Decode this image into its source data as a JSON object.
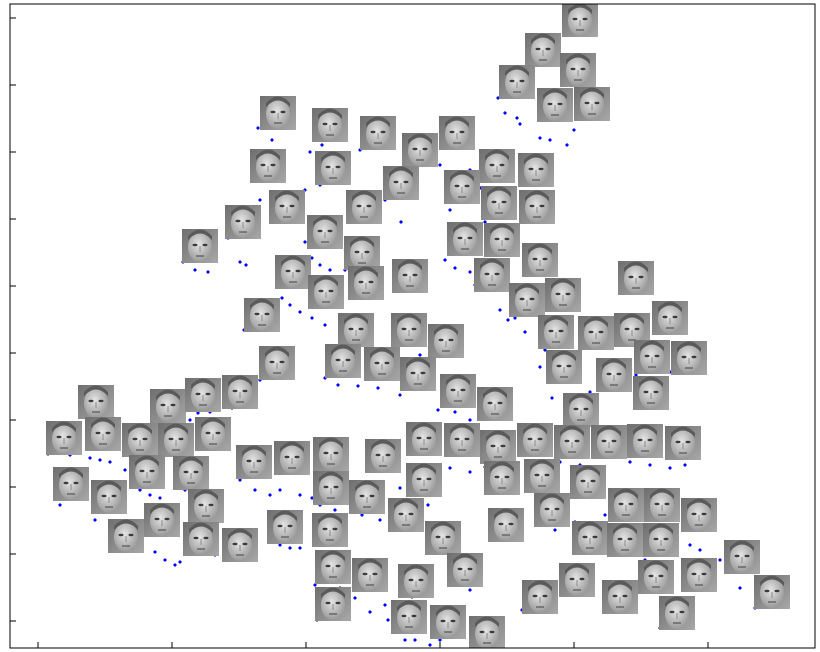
{
  "chart_data": {
    "type": "scatter",
    "color": "#0000ff",
    "xlim": [
      10,
      815
    ],
    "ylim": [
      648,
      4
    ],
    "xticks": [
      38,
      172,
      306,
      440,
      574,
      708
    ],
    "yticks": [
      621,
      554,
      487,
      420,
      353,
      286,
      219,
      152,
      85,
      18
    ],
    "x": [
      498,
      505,
      517,
      520,
      540,
      550,
      567,
      574,
      540,
      258,
      272,
      310,
      322,
      360,
      405,
      440,
      470,
      436,
      252,
      260,
      305,
      320,
      385,
      410,
      401,
      450,
      480,
      485,
      515,
      228,
      246,
      240,
      183,
      195,
      208,
      305,
      312,
      320,
      330,
      340,
      345,
      352,
      445,
      455,
      470,
      475,
      490,
      500,
      508,
      515,
      525,
      545,
      548,
      552,
      540,
      540,
      282,
      290,
      300,
      244,
      312,
      325,
      345,
      370,
      395,
      420,
      432,
      455,
      568,
      590,
      620,
      636,
      670,
      325,
      338,
      358,
      378,
      400,
      438,
      455,
      470,
      190,
      198,
      210,
      232,
      150,
      170,
      178,
      260,
      48,
      70,
      90,
      100,
      110,
      125,
      135,
      140,
      150,
      160,
      185,
      200,
      60,
      95,
      110,
      155,
      165,
      175,
      180,
      200,
      215,
      240,
      255,
      270,
      280,
      300,
      312,
      280,
      290,
      300,
      320,
      335,
      345,
      362,
      380,
      400,
      410,
      428,
      450,
      470,
      485,
      560,
      580,
      595,
      600,
      605,
      612,
      630,
      650,
      670,
      685,
      520,
      540,
      555,
      565,
      575,
      645,
      660,
      690,
      700,
      720,
      740,
      755,
      522,
      580,
      620,
      660,
      680,
      315,
      340,
      355,
      385,
      398,
      405,
      415,
      430,
      440,
      470,
      450,
      475,
      412,
      317,
      370,
      388
    ],
    "y": [
      98,
      113,
      118,
      124,
      138,
      140,
      145,
      130,
      117,
      128,
      140,
      152,
      145,
      150,
      172,
      165,
      170,
      153,
      178,
      200,
      190,
      185,
      200,
      195,
      222,
      210,
      188,
      222,
      228,
      238,
      265,
      262,
      262,
      270,
      272,
      242,
      258,
      265,
      270,
      245,
      270,
      290,
      260,
      268,
      272,
      285,
      290,
      310,
      320,
      318,
      332,
      350,
      372,
      398,
      345,
      367,
      298,
      305,
      312,
      330,
      318,
      325,
      338,
      343,
      350,
      355,
      358,
      352,
      380,
      392,
      385,
      375,
      372,
      378,
      385,
      386,
      388,
      395,
      410,
      412,
      420,
      420,
      413,
      412,
      408,
      428,
      427,
      424,
      380,
      454,
      455,
      458,
      460,
      462,
      470,
      480,
      490,
      495,
      498,
      490,
      492,
      505,
      520,
      548,
      552,
      560,
      565,
      562,
      552,
      555,
      480,
      490,
      495,
      490,
      495,
      498,
      545,
      548,
      548,
      505,
      510,
      515,
      515,
      520,
      488,
      500,
      505,
      468,
      472,
      467,
      462,
      465,
      470,
      490,
      515,
      520,
      462,
      465,
      468,
      465,
      528,
      523,
      530,
      525,
      522,
      560,
      555,
      545,
      550,
      560,
      588,
      608,
      610,
      595,
      612,
      628,
      622,
      585,
      588,
      598,
      605,
      630,
      640,
      640,
      645,
      640,
      590,
      610,
      620,
      597,
      620,
      612,
      620
    ],
    "thumbnails": {
      "x": [
        580,
        543,
        578,
        517,
        555,
        592,
        278,
        330,
        378,
        420,
        457,
        497,
        536,
        268,
        333,
        401,
        462,
        287,
        364,
        499,
        537,
        243,
        325,
        200,
        362,
        465,
        502,
        540,
        293,
        366,
        410,
        326,
        492,
        636,
        563,
        527,
        262,
        356,
        409,
        446,
        556,
        596,
        632,
        670,
        689,
        652,
        564,
        614,
        343,
        382,
        418,
        651,
        277,
        458,
        495,
        96,
        168,
        203,
        240,
        581,
        64,
        103,
        140,
        176,
        213,
        424,
        462,
        498,
        535,
        572,
        609,
        645,
        683,
        254,
        292,
        331,
        383,
        424,
        147,
        191,
        71,
        109,
        331,
        367,
        502,
        542,
        588,
        162,
        206,
        626,
        662,
        699,
        126,
        201,
        240,
        285,
        330,
        406,
        443,
        506,
        552,
        590,
        625,
        661,
        742,
        333,
        370,
        416,
        465,
        577,
        540,
        620,
        656,
        699,
        772,
        333,
        409,
        448,
        487,
        677
      ],
      "y": [
        20,
        50,
        70,
        82,
        105,
        104,
        113,
        125,
        133,
        150,
        133,
        166,
        170,
        166,
        168,
        183,
        187,
        207,
        207,
        203,
        207,
        222,
        232,
        246,
        253,
        239,
        240,
        260,
        272,
        283,
        276,
        292,
        275,
        278,
        295,
        300,
        315,
        330,
        330,
        341,
        332,
        333,
        330,
        318,
        358,
        357,
        367,
        375,
        361,
        364,
        374,
        393,
        363,
        391,
        404,
        402,
        406,
        395,
        392,
        410,
        438,
        434,
        440,
        440,
        434,
        439,
        440,
        447,
        440,
        442,
        442,
        441,
        443,
        462,
        458,
        454,
        456,
        480,
        472,
        473,
        484,
        497,
        488,
        497,
        478,
        476,
        482,
        520,
        506,
        505,
        505,
        515,
        536,
        539,
        545,
        527,
        530,
        515,
        538,
        525,
        510,
        538,
        540,
        540,
        557,
        567,
        575,
        581,
        570,
        580,
        597,
        597,
        577,
        575,
        592,
        604,
        617,
        622,
        633,
        613
      ]
    }
  }
}
